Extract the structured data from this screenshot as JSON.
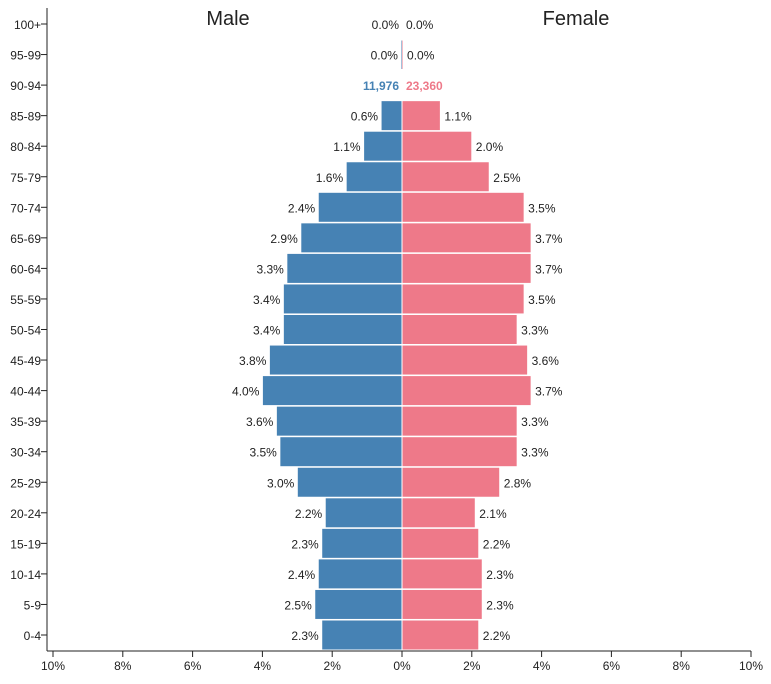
{
  "chart_data": {
    "type": "bar",
    "subtype": "population-pyramid",
    "orientation": "horizontal",
    "categories": [
      "100+",
      "95-99",
      "90-94",
      "85-89",
      "80-84",
      "75-79",
      "70-74",
      "65-69",
      "60-64",
      "55-59",
      "50-54",
      "45-49",
      "40-44",
      "35-39",
      "30-34",
      "25-29",
      "20-24",
      "15-19",
      "10-14",
      "5-9",
      "0-4"
    ],
    "series": [
      {
        "name": "Male",
        "color": "#4682b4",
        "values": [
          0.0,
          0.03,
          null,
          0.6,
          1.1,
          1.6,
          2.4,
          2.9,
          3.3,
          3.4,
          3.4,
          3.8,
          4.0,
          3.6,
          3.5,
          3.0,
          2.2,
          2.3,
          2.4,
          2.5,
          2.3
        ],
        "labels": [
          "0.0%",
          "0.0%",
          "11,976",
          "0.6%",
          "1.1%",
          "1.6%",
          "2.4%",
          "2.9%",
          "3.3%",
          "3.4%",
          "3.4%",
          "3.8%",
          "4.0%",
          "3.6%",
          "3.5%",
          "3.0%",
          "2.2%",
          "2.3%",
          "2.4%",
          "2.5%",
          "2.3%"
        ]
      },
      {
        "name": "Female",
        "color": "#ee7989",
        "values": [
          0.0,
          0.03,
          null,
          1.1,
          2.0,
          2.5,
          3.5,
          3.7,
          3.7,
          3.5,
          3.3,
          3.6,
          3.7,
          3.3,
          3.3,
          2.8,
          2.1,
          2.2,
          2.3,
          2.3,
          2.2
        ],
        "labels": [
          "0.0%",
          "0.0%",
          "23,360",
          "1.1%",
          "2.0%",
          "2.5%",
          "3.5%",
          "3.7%",
          "3.7%",
          "3.5%",
          "3.3%",
          "3.6%",
          "3.7%",
          "3.3%",
          "3.3%",
          "2.8%",
          "2.1%",
          "2.2%",
          "2.3%",
          "2.3%",
          "2.2%"
        ]
      }
    ],
    "highlight_row": "90-94",
    "xlim": [
      -10,
      10
    ],
    "xticks": [
      "10%",
      "8%",
      "6%",
      "4%",
      "2%",
      "0%",
      "2%",
      "4%",
      "6%",
      "8%",
      "10%"
    ],
    "xtick_values": [
      -10,
      -8,
      -6,
      -4,
      -2,
      0,
      2,
      4,
      6,
      8,
      10
    ],
    "grid": false
  }
}
